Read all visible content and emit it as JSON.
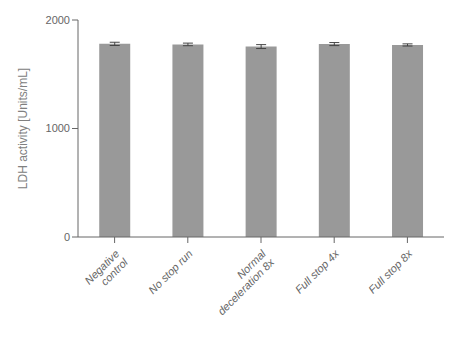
{
  "chart_data": {
    "type": "bar",
    "categories": [
      "Negative\ncontrol",
      "No stop run",
      "Normal\ndeceleration 8x",
      "Full stop 4x",
      "Full stop 8x"
    ],
    "values": [
      1780,
      1775,
      1755,
      1778,
      1770
    ],
    "errors": [
      15,
      12,
      18,
      14,
      10
    ],
    "color": "#999999",
    "ylabel": "LDH activity [Units/mL]",
    "ylim": [
      0,
      2000
    ],
    "yticks": [
      0,
      1000,
      2000
    ],
    "grid": false
  }
}
